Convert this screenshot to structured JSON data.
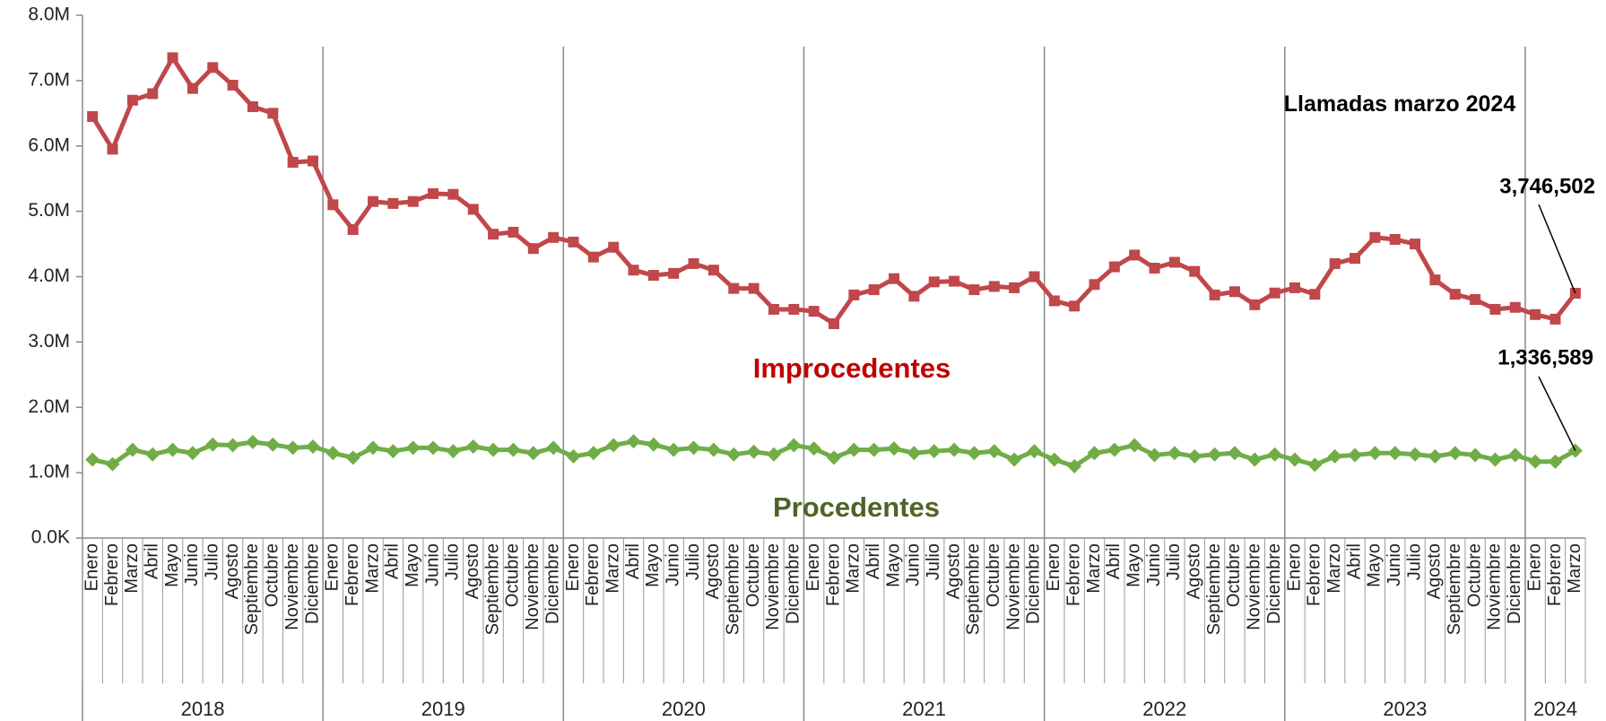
{
  "chart_data": {
    "type": "line",
    "groups": [
      {
        "label": "2018",
        "categories": [
          "Enero",
          "Febrero",
          "Marzo",
          "Abril",
          "Mayo",
          "Junio",
          "Julio",
          "Agosto",
          "Septiembre",
          "Octubre",
          "Noviembre",
          "Diciembre"
        ]
      },
      {
        "label": "2019",
        "categories": [
          "Enero",
          "Febrero",
          "Marzo",
          "Abril",
          "Mayo",
          "Junio",
          "Julio",
          "Agosto",
          "Septiembre",
          "Octubre",
          "Noviembre",
          "Diciembre"
        ]
      },
      {
        "label": "2020",
        "categories": [
          "Enero",
          "Febrero",
          "Marzo",
          "Abril",
          "Mayo",
          "Junio",
          "Julio",
          "Agosto",
          "Septiembre",
          "Octubre",
          "Noviembre",
          "Diciembre"
        ]
      },
      {
        "label": "2021",
        "categories": [
          "Enero",
          "Febrero",
          "Marzo",
          "Abril",
          "Mayo",
          "Junio",
          "Julio",
          "Agosto",
          "Septiembre",
          "Octubre",
          "Noviembre",
          "Diciembre"
        ]
      },
      {
        "label": "2022",
        "categories": [
          "Enero",
          "Febrero",
          "Marzo",
          "Abril",
          "Mayo",
          "Junio",
          "Julio",
          "Agosto",
          "Septiembre",
          "Octubre",
          "Noviembre",
          "Diciembre"
        ]
      },
      {
        "label": "2023",
        "categories": [
          "Enero",
          "Febrero",
          "Marzo",
          "Abril",
          "Mayo",
          "Junio",
          "Julio",
          "Agosto",
          "Septiembre",
          "Octubre",
          "Noviembre",
          "Diciembre"
        ]
      },
      {
        "label": "2024",
        "categories": [
          "Enero",
          "Febrero",
          "Marzo"
        ]
      }
    ],
    "series": [
      {
        "name": "Improcedentes",
        "color": "#c0474a",
        "label_color": "#c00000",
        "marker": "square",
        "values": [
          6450000,
          5950000,
          6700000,
          6800000,
          7350000,
          6880000,
          7200000,
          6930000,
          6600000,
          6500000,
          5750000,
          5770000,
          5100000,
          4720000,
          5150000,
          5120000,
          5150000,
          5270000,
          5260000,
          5030000,
          4650000,
          4680000,
          4430000,
          4600000,
          4530000,
          4300000,
          4450000,
          4100000,
          4020000,
          4050000,
          4200000,
          4100000,
          3820000,
          3820000,
          3500000,
          3500000,
          3470000,
          3280000,
          3720000,
          3800000,
          3970000,
          3700000,
          3920000,
          3930000,
          3800000,
          3850000,
          3830000,
          4000000,
          3630000,
          3550000,
          3880000,
          4150000,
          4330000,
          4130000,
          4220000,
          4080000,
          3720000,
          3770000,
          3570000,
          3750000,
          3830000,
          3730000,
          4200000,
          4280000,
          4600000,
          4570000,
          4500000,
          3950000,
          3730000,
          3650000,
          3500000,
          3530000,
          3420000,
          3350000,
          3746502
        ],
        "value_labels": [
          null,
          null,
          null,
          null,
          null,
          null,
          null,
          null,
          null,
          null,
          null,
          null,
          null,
          null,
          null,
          null,
          null,
          null,
          null,
          null,
          null,
          null,
          null,
          null,
          null,
          null,
          null,
          null,
          null,
          null,
          null,
          null,
          null,
          null,
          null,
          null,
          null,
          null,
          null,
          null,
          null,
          null,
          null,
          null,
          null,
          null,
          null,
          null,
          null,
          null,
          null,
          null,
          null,
          null,
          null,
          null,
          null,
          null,
          null,
          null,
          null,
          null,
          null,
          null,
          null,
          null,
          null,
          null,
          null,
          null,
          null,
          null,
          null,
          null,
          "3,746,502"
        ]
      },
      {
        "name": "Procedentes",
        "color": "#70ad47",
        "label_color": "#4f6228",
        "marker": "diamond",
        "values": [
          1200000,
          1130000,
          1350000,
          1280000,
          1350000,
          1300000,
          1430000,
          1420000,
          1470000,
          1430000,
          1380000,
          1400000,
          1300000,
          1230000,
          1380000,
          1330000,
          1380000,
          1380000,
          1330000,
          1400000,
          1350000,
          1350000,
          1300000,
          1380000,
          1250000,
          1300000,
          1420000,
          1480000,
          1430000,
          1350000,
          1380000,
          1350000,
          1280000,
          1320000,
          1280000,
          1420000,
          1370000,
          1230000,
          1350000,
          1350000,
          1370000,
          1300000,
          1330000,
          1350000,
          1300000,
          1330000,
          1200000,
          1330000,
          1200000,
          1100000,
          1300000,
          1350000,
          1420000,
          1270000,
          1300000,
          1250000,
          1280000,
          1300000,
          1200000,
          1280000,
          1200000,
          1120000,
          1250000,
          1270000,
          1300000,
          1300000,
          1280000,
          1250000,
          1300000,
          1270000,
          1200000,
          1270000,
          1170000,
          1170000,
          1336589
        ],
        "value_labels": [
          null,
          null,
          null,
          null,
          null,
          null,
          null,
          null,
          null,
          null,
          null,
          null,
          null,
          null,
          null,
          null,
          null,
          null,
          null,
          null,
          null,
          null,
          null,
          null,
          null,
          null,
          null,
          null,
          null,
          null,
          null,
          null,
          null,
          null,
          null,
          null,
          null,
          null,
          null,
          null,
          null,
          null,
          null,
          null,
          null,
          null,
          null,
          null,
          null,
          null,
          null,
          null,
          null,
          null,
          null,
          null,
          null,
          null,
          null,
          null,
          null,
          null,
          null,
          null,
          null,
          null,
          null,
          null,
          null,
          null,
          null,
          null,
          null,
          null,
          "1,336,589"
        ]
      }
    ],
    "annotation": "Llamadas marzo 2024",
    "ylim": [
      0,
      8000000
    ],
    "yticks": [
      {
        "value": 0,
        "label": "0.0K"
      },
      {
        "value": 1000000,
        "label": "1.0M"
      },
      {
        "value": 2000000,
        "label": "2.0M"
      },
      {
        "value": 3000000,
        "label": "3.0M"
      },
      {
        "value": 4000000,
        "label": "4.0M"
      },
      {
        "value": 5000000,
        "label": "5.0M"
      },
      {
        "value": 6000000,
        "label": "6.0M"
      },
      {
        "value": 7000000,
        "label": "7.0M"
      },
      {
        "value": 8000000,
        "label": "8.0M"
      }
    ],
    "grid": false
  }
}
